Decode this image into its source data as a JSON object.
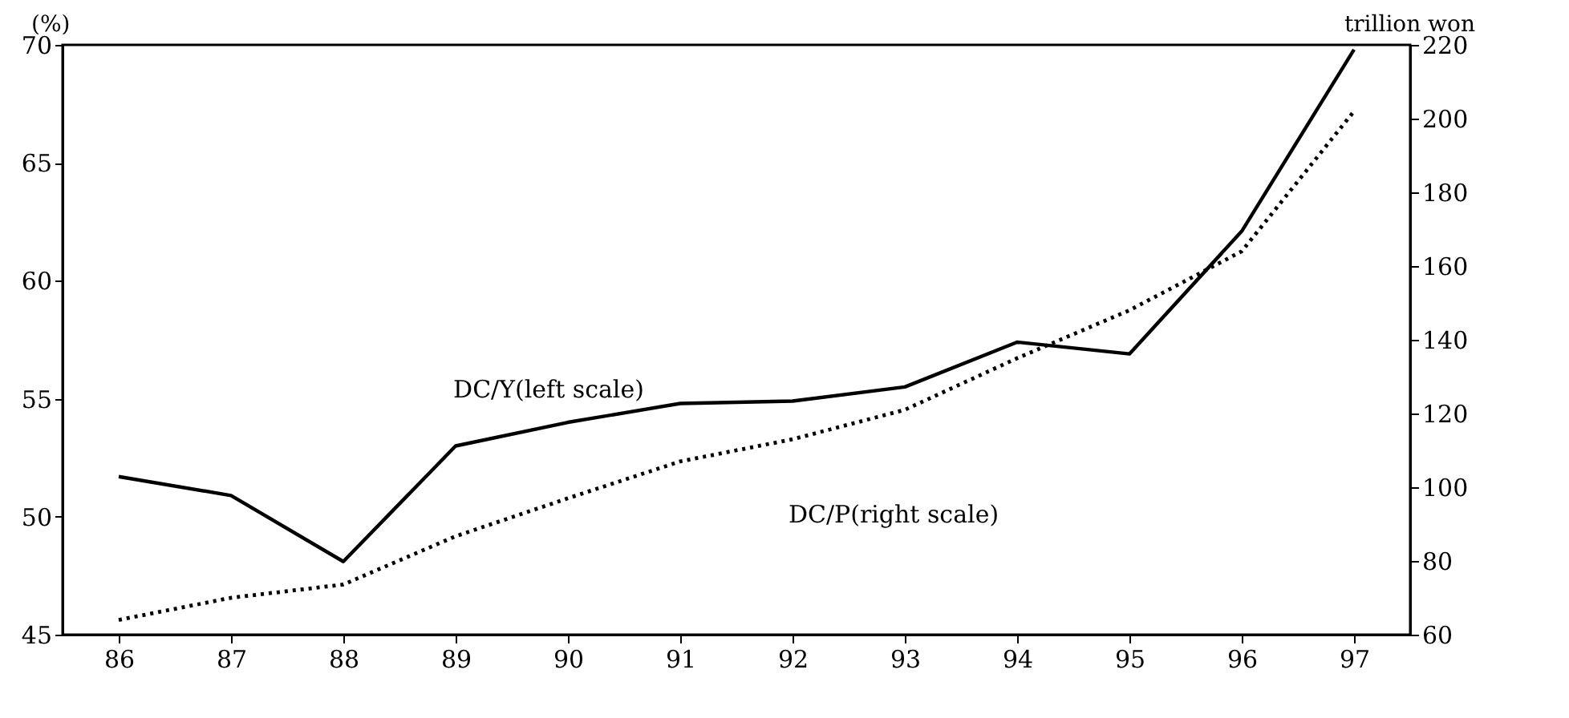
{
  "chart_data": {
    "type": "line",
    "ylabel": "(%)",
    "y2label": "trillion won",
    "categories": [
      "86",
      "87",
      "88",
      "89",
      "90",
      "91",
      "92",
      "93",
      "94",
      "95",
      "96",
      "97"
    ],
    "series": [
      {
        "name": "DC/Y(left scale)",
        "color": "#000000",
        "line_style": "solid",
        "values": [
          51.7,
          50.9,
          48.1,
          53.0,
          54.0,
          54.8,
          54.9,
          55.5,
          57.4,
          56.9,
          62.1,
          69.8
        ]
      },
      {
        "name": "DC/P(right scale)",
        "color": "#000000",
        "line_style": "dotted",
        "axis": "y2",
        "values": [
          64,
          70,
          73.6,
          86.7,
          97,
          107,
          113,
          121,
          135,
          148,
          164,
          202
        ]
      }
    ],
    "ylim": [
      45,
      70
    ],
    "yticks": [
      45,
      50,
      55,
      60,
      65,
      70
    ],
    "y2lim": [
      60,
      220
    ],
    "y2ticks": [
      60,
      80,
      100,
      120,
      140,
      160,
      180,
      200,
      220
    ],
    "grid": false,
    "marker": "none"
  }
}
